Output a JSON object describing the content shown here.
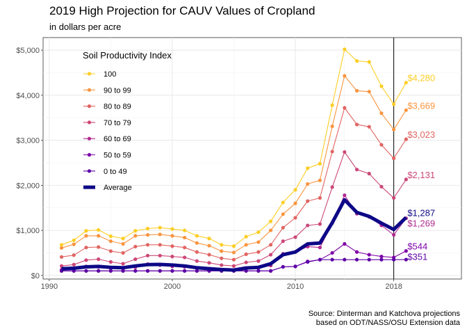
{
  "title": "2019 High Projection for CAUV Values of Cropland",
  "subtitle": "in dollars per acre",
  "caption_line1": "Source: Dinterman and Katchova projections",
  "caption_line2": "based on ODT/NASS/OSU Extension data",
  "chart_data": {
    "type": "line",
    "legend_title": "Soil Productivity Index",
    "legend_position": "top-left",
    "x": [
      1991,
      1992,
      1993,
      1994,
      1995,
      1996,
      1997,
      1998,
      1999,
      2000,
      2001,
      2002,
      2003,
      2004,
      2005,
      2006,
      2007,
      2008,
      2009,
      2010,
      2011,
      2012,
      2013,
      2014,
      2015,
      2016,
      2017,
      2018,
      2019
    ],
    "xlim": [
      1989.5,
      2023.5
    ],
    "ylim": [
      -80,
      5280
    ],
    "x_ticks": [
      1990,
      2000,
      2010,
      2018
    ],
    "y_ticks": [
      0,
      1000,
      2000,
      3000,
      4000,
      5000
    ],
    "y_tick_labels": [
      "$0",
      "$1,000",
      "$2,000",
      "$3,000",
      "$4,000",
      "$5,000"
    ],
    "vline_x": 2018,
    "grid": true,
    "series": [
      {
        "name": "100",
        "color": "#fcce25",
        "values": [
          680,
          780,
          990,
          1010,
          870,
          820,
          990,
          1040,
          1060,
          1030,
          1000,
          880,
          820,
          680,
          650,
          860,
          960,
          1200,
          1620,
          1900,
          2380,
          2480,
          3780,
          5020,
          4760,
          4740,
          4200,
          3800,
          4280
        ],
        "end_label": "$4,280"
      },
      {
        "name": "90 to 99",
        "color": "#f89540",
        "values": [
          610,
          690,
          880,
          880,
          760,
          700,
          880,
          900,
          910,
          880,
          840,
          720,
          660,
          540,
          510,
          680,
          740,
          1000,
          1360,
          1600,
          2030,
          2110,
          3310,
          4430,
          4100,
          4080,
          3600,
          3240,
          3669
        ],
        "end_label": "$3,669"
      },
      {
        "name": "80 to 89",
        "color": "#e16462",
        "values": [
          410,
          450,
          620,
          630,
          540,
          500,
          640,
          680,
          680,
          650,
          620,
          520,
          460,
          380,
          350,
          470,
          520,
          680,
          1060,
          1280,
          1650,
          1720,
          2750,
          3720,
          3350,
          3300,
          2900,
          2600,
          3023
        ],
        "end_label": "$3,023"
      },
      {
        "name": "70 to 79",
        "color": "#cc4778",
        "values": [
          210,
          240,
          340,
          360,
          300,
          260,
          360,
          440,
          440,
          420,
          400,
          320,
          280,
          230,
          210,
          290,
          320,
          460,
          760,
          850,
          1110,
          1140,
          1960,
          2740,
          2350,
          2260,
          1970,
          1720,
          2131
        ],
        "end_label": "$2,131"
      },
      {
        "name": "60 to 69",
        "color": "#b12a90",
        "values": [
          130,
          150,
          200,
          190,
          160,
          150,
          180,
          250,
          230,
          200,
          190,
          160,
          150,
          120,
          110,
          150,
          160,
          220,
          480,
          520,
          640,
          620,
          1160,
          1780,
          1370,
          1300,
          1110,
          900,
          1269
        ],
        "end_label": "$1,269"
      },
      {
        "name": "50 to 59",
        "color": "#7e03a8",
        "values": [
          100,
          100,
          100,
          100,
          100,
          100,
          100,
          100,
          100,
          100,
          100,
          100,
          100,
          100,
          100,
          100,
          100,
          100,
          190,
          200,
          310,
          350,
          500,
          700,
          520,
          460,
          420,
          400,
          544
        ],
        "end_label": "$544"
      },
      {
        "name": "0 to 49",
        "color": "#5c01a6",
        "values": [
          100,
          100,
          100,
          100,
          100,
          100,
          100,
          100,
          100,
          100,
          100,
          100,
          100,
          100,
          100,
          100,
          100,
          100,
          190,
          200,
          300,
          350,
          350,
          350,
          350,
          350,
          350,
          350,
          351
        ],
        "end_label": "$351"
      },
      {
        "name": "Average",
        "color": "#0d0887",
        "thick": true,
        "values": [
          150,
          160,
          190,
          200,
          180,
          170,
          210,
          240,
          245,
          230,
          210,
          170,
          150,
          130,
          120,
          165,
          180,
          260,
          460,
          520,
          700,
          720,
          1170,
          1680,
          1400,
          1310,
          1160,
          1020,
          1287
        ],
        "end_label": "$1,287"
      }
    ]
  }
}
